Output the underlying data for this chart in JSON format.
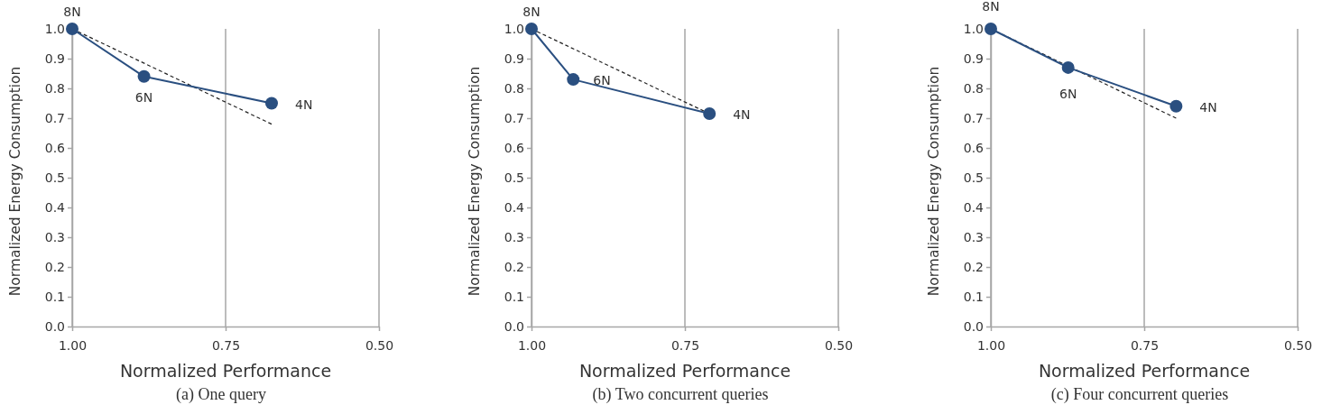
{
  "chart_data": [
    {
      "type": "line",
      "xlabel": "Normalized Performance",
      "ylabel": "Normalized Energy Consumption",
      "xlim": [
        1.0,
        0.5
      ],
      "ylim": [
        0,
        1.0
      ],
      "xticks": [
        {
          "value": 1.0,
          "label": "1.00"
        },
        {
          "value": 0.75,
          "label": "0.75"
        },
        {
          "value": 0.5,
          "label": "0.50"
        }
      ],
      "yticks": [
        {
          "value": 0,
          "label": "0.0"
        },
        {
          "value": 0.1,
          "label": "0.1"
        },
        {
          "value": 0.2,
          "label": "0.2"
        },
        {
          "value": 0.3,
          "label": "0.3"
        },
        {
          "value": 0.4,
          "label": "0.4"
        },
        {
          "value": 0.5,
          "label": "0.5"
        },
        {
          "value": 0.6,
          "label": "0.6"
        },
        {
          "value": 0.7,
          "label": "0.7"
        },
        {
          "value": 0.8,
          "label": "0.8"
        },
        {
          "value": 0.9,
          "label": "0.9"
        },
        {
          "value": 1.0,
          "label": "1.0"
        }
      ],
      "grid": "x",
      "series": [
        {
          "color": "#2a4f80",
          "x": [
            1.0,
            0.883,
            0.675
          ],
          "values": [
            1.0,
            0.84,
            0.75
          ],
          "marker": "circle",
          "line_style": "solid"
        },
        {
          "color": "#222222",
          "x": [
            1.0,
            0.675
          ],
          "values": [
            1.0,
            0.68
          ],
          "marker": "none",
          "line_style": "dashed"
        }
      ],
      "annotations": [
        {
          "text": "8N",
          "x": 1.0,
          "y": 1.0
        },
        {
          "text": "6N",
          "x": 0.883,
          "y": 0.84
        },
        {
          "text": "4N",
          "x": 0.675,
          "y": 0.75
        },
        "(a) One query"
      ]
    },
    {
      "type": "line",
      "xlabel": "Normalized Performance",
      "ylabel": "Normalized Energy Consumption",
      "xlim": [
        1.0,
        0.5
      ],
      "ylim": [
        0,
        1.0
      ],
      "xticks": [
        {
          "value": 1.0,
          "label": "1.00"
        },
        {
          "value": 0.75,
          "label": "0.75"
        },
        {
          "value": 0.5,
          "label": "0.50"
        }
      ],
      "yticks": [
        {
          "value": 0,
          "label": "0.0"
        },
        {
          "value": 0.1,
          "label": "0.1"
        },
        {
          "value": 0.2,
          "label": "0.2"
        },
        {
          "value": 0.3,
          "label": "0.3"
        },
        {
          "value": 0.4,
          "label": "0.4"
        },
        {
          "value": 0.5,
          "label": "0.5"
        },
        {
          "value": 0.6,
          "label": "0.6"
        },
        {
          "value": 0.7,
          "label": "0.7"
        },
        {
          "value": 0.8,
          "label": "0.8"
        },
        {
          "value": 0.9,
          "label": "0.9"
        },
        {
          "value": 1.0,
          "label": "1.0"
        }
      ],
      "grid": "x",
      "series": [
        {
          "color": "#2a4f80",
          "x": [
            1.0,
            0.932,
            0.71
          ],
          "values": [
            1.0,
            0.83,
            0.715
          ],
          "marker": "circle",
          "line_style": "solid"
        },
        {
          "color": "#222222",
          "x": [
            1.0,
            0.71
          ],
          "values": [
            1.0,
            0.715
          ],
          "marker": "none",
          "line_style": "dashed"
        }
      ],
      "annotations": [
        {
          "text": "8N",
          "x": 1.0,
          "y": 1.0
        },
        {
          "text": "6N",
          "x": 0.932,
          "y": 0.83
        },
        {
          "text": "4N",
          "x": 0.71,
          "y": 0.715
        },
        "(b) Two concurrent queries"
      ]
    },
    {
      "type": "line",
      "xlabel": "Normalized Performance",
      "ylabel": "Normalized Energy Consumption",
      "xlim": [
        1.0,
        0.5
      ],
      "ylim": [
        0,
        1.0
      ],
      "xticks": [
        {
          "value": 1.0,
          "label": "1.00"
        },
        {
          "value": 0.75,
          "label": "0.75"
        },
        {
          "value": 0.5,
          "label": "0.50"
        }
      ],
      "yticks": [
        {
          "value": 0,
          "label": "0.0"
        },
        {
          "value": 0.1,
          "label": "0.1"
        },
        {
          "value": 0.2,
          "label": "0.2"
        },
        {
          "value": 0.3,
          "label": "0.3"
        },
        {
          "value": 0.4,
          "label": "0.4"
        },
        {
          "value": 0.5,
          "label": "0.5"
        },
        {
          "value": 0.6,
          "label": "0.6"
        },
        {
          "value": 0.7,
          "label": "0.7"
        },
        {
          "value": 0.8,
          "label": "0.8"
        },
        {
          "value": 0.9,
          "label": "0.9"
        },
        {
          "value": 1.0,
          "label": "1.0"
        }
      ],
      "grid": "x",
      "series": [
        {
          "color": "#2a4f80",
          "x": [
            1.0,
            0.874,
            0.698
          ],
          "values": [
            1.0,
            0.87,
            0.74
          ],
          "marker": "circle",
          "line_style": "solid"
        },
        {
          "color": "#222222",
          "x": [
            1.0,
            0.698
          ],
          "values": [
            1.0,
            0.7
          ],
          "marker": "none",
          "line_style": "dashed"
        }
      ],
      "annotations": [
        {
          "text": "8N",
          "x": 1.0,
          "y": 1.0
        },
        {
          "text": "6N",
          "x": 0.874,
          "y": 0.87
        },
        {
          "text": "4N",
          "x": 0.698,
          "y": 0.74
        },
        "(c) Four concurrent queries"
      ]
    }
  ]
}
